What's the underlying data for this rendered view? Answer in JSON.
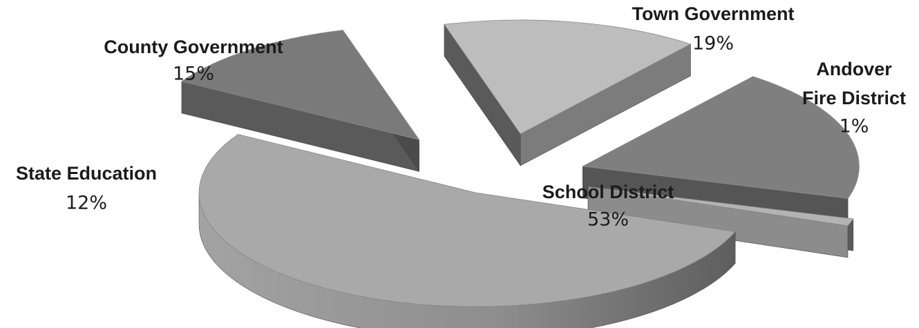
{
  "chart_data": {
    "type": "pie",
    "title": "",
    "style": "3d-exploded",
    "slices": [
      {
        "name_lines": [
          "School District"
        ],
        "value": 53,
        "label": "53%",
        "top_color": "#a9a9a9",
        "side_color": "#777777"
      },
      {
        "name_lines": [
          "State Education"
        ],
        "value": 12,
        "label": "12%",
        "top_color": "#7a7a7a",
        "side_color": "#4b4b4b"
      },
      {
        "name_lines": [
          "County Government"
        ],
        "value": 15,
        "label": "15%",
        "top_color": "#bdbdbd",
        "side_color": "#7c7c7c"
      },
      {
        "name_lines": [
          "Town Government"
        ],
        "value": 19,
        "label": "19%",
        "top_color": "#7f7f7f",
        "side_color": "#555555"
      },
      {
        "name_lines": [
          "Andover",
          "Fire District"
        ],
        "value": 1,
        "label": "1%",
        "top_color": "#b3b3b3",
        "side_color": "#8c8c8c"
      }
    ]
  }
}
